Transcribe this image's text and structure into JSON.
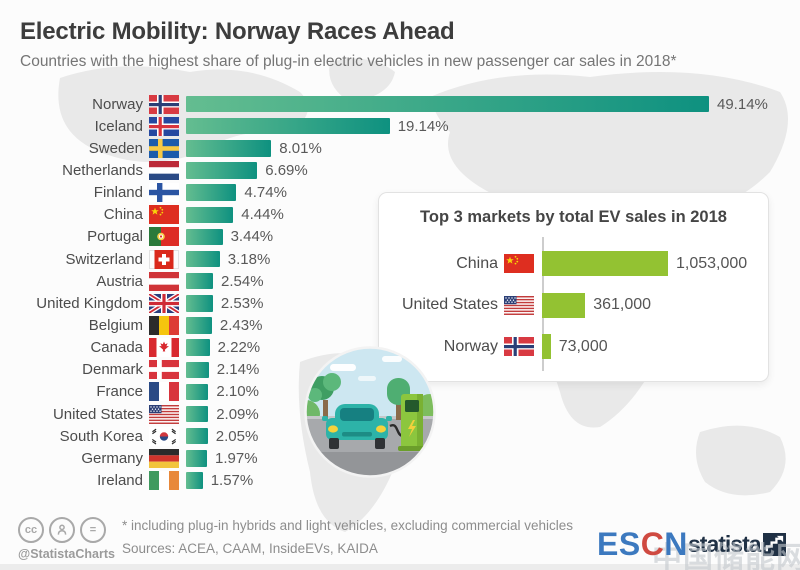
{
  "header": {
    "title": "Electric Mobility: Norway Races Ahead",
    "subtitle": "Countries with the highest share of plug-in electric vehicles in new passenger car sales in 2018*"
  },
  "chart_data": [
    {
      "id": "ev-share-by-country",
      "type": "bar",
      "orientation": "horizontal",
      "title": "Countries with the highest share of plug-in electric vehicles in new passenger car sales in 2018",
      "unit": "%",
      "xlim": [
        0,
        49.14
      ],
      "grid": false,
      "bar_gradient": [
        "#64bd90",
        "#0e9180"
      ],
      "categories": [
        "Norway",
        "Iceland",
        "Sweden",
        "Netherlands",
        "Finland",
        "China",
        "Portugal",
        "Switzerland",
        "Austria",
        "United Kingdom",
        "Belgium",
        "Canada",
        "Denmark",
        "France",
        "United States",
        "South Korea",
        "Germany",
        "Ireland"
      ],
      "values": [
        49.14,
        19.14,
        8.01,
        6.69,
        4.74,
        4.44,
        3.44,
        3.18,
        2.54,
        2.53,
        2.43,
        2.22,
        2.14,
        2.1,
        2.09,
        2.05,
        1.97,
        1.57
      ],
      "labels": [
        "49.14%",
        "19.14%",
        "8.01%",
        "6.69%",
        "4.74%",
        "4.44%",
        "3.44%",
        "3.18%",
        "2.54%",
        "2.53%",
        "2.43%",
        "2.22%",
        "2.14%",
        "2.10%",
        "2.09%",
        "2.05%",
        "1.97%",
        "1.57%"
      ],
      "flags": [
        "norway",
        "iceland",
        "sweden",
        "netherlands",
        "finland",
        "china",
        "portugal",
        "switzerland",
        "austria",
        "united-kingdom",
        "belgium",
        "canada",
        "denmark",
        "france",
        "united-states",
        "south-korea",
        "germany",
        "ireland"
      ]
    },
    {
      "id": "top-3-ev-markets",
      "type": "bar",
      "orientation": "horizontal",
      "title": "Top 3 markets by total EV sales in 2018",
      "bar_color": "#93c232",
      "xlim": [
        0,
        1053000
      ],
      "grid": false,
      "categories": [
        "China",
        "United States",
        "Norway"
      ],
      "values": [
        1053000,
        361000,
        73000
      ],
      "labels": [
        "1,053,000",
        "361,000",
        "73,000"
      ],
      "flags": [
        "china",
        "united-states",
        "norway"
      ]
    }
  ],
  "footer": {
    "cc_glyph": "cc",
    "nd_glyph": "=",
    "license_handle": "@StatistaCharts",
    "footnote": "* including plug-in hybrids and light vehicles, excluding commercial vehicles",
    "sources": "Sources: ACEA, CAAM, InsideEVs, KAIDA"
  },
  "branding": {
    "escn_part1": "ES",
    "escn_part2": "C",
    "escn_part3": "N",
    "statista": "statista",
    "watermark_cn": "中国储能网"
  },
  "colors": {
    "main_bar_start": "#64bd90",
    "main_bar_end": "#0e9180",
    "inset_bar": "#93c232",
    "escn_blue": "#3c79bf",
    "escn_red": "#cf4a41",
    "statista_navy": "#1f3044"
  }
}
